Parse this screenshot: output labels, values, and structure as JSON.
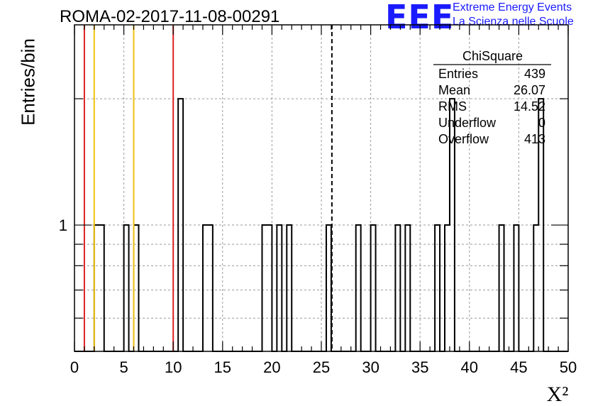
{
  "header": {
    "title": "ROMA-02-2017-11-08-00291",
    "logo_mark": "EEE",
    "logo_line1": "Extreme Energy Events",
    "logo_line2": "La Scienza nelle Scuole"
  },
  "colors": {
    "histogram": "#000000",
    "red_lines": "#dd2020",
    "yellow_lines": "#f0c010",
    "logo": "#1a1aff",
    "grid": "#9a9a9a"
  },
  "stats": {
    "title": "ChiSquare",
    "rows": [
      {
        "label": "Entries",
        "value": "439"
      },
      {
        "label": "Mean",
        "value": "26.07"
      },
      {
        "label": "RMS",
        "value": "14.52"
      },
      {
        "label": "Underflow",
        "value": "0"
      },
      {
        "label": "Overflow",
        "value": "413"
      }
    ]
  },
  "chart_data": {
    "type": "bar",
    "title": "ROMA-02-2017-11-08-00291",
    "xlabel": "X²",
    "ylabel": "Entries/bin",
    "xlim": [
      0,
      50
    ],
    "ylim": [
      0.5,
      3
    ],
    "log_y": true,
    "grid": true,
    "bin_width": 0.5,
    "x_ticks": [
      0,
      5,
      10,
      15,
      20,
      25,
      30,
      35,
      40,
      45,
      50
    ],
    "y_tick_labels": [
      {
        "value": 1,
        "label": "1"
      }
    ],
    "bins": [
      {
        "x": 2.0,
        "count": 1
      },
      {
        "x": 2.5,
        "count": 1
      },
      {
        "x": 5.0,
        "count": 1
      },
      {
        "x": 6.0,
        "count": 1
      },
      {
        "x": 10.5,
        "count": 2
      },
      {
        "x": 13.0,
        "count": 1
      },
      {
        "x": 13.5,
        "count": 1
      },
      {
        "x": 19.0,
        "count": 1
      },
      {
        "x": 19.5,
        "count": 1
      },
      {
        "x": 20.5,
        "count": 1
      },
      {
        "x": 21.5,
        "count": 1
      },
      {
        "x": 25.5,
        "count": 1
      },
      {
        "x": 28.5,
        "count": 1
      },
      {
        "x": 30.0,
        "count": 1
      },
      {
        "x": 32.5,
        "count": 1
      },
      {
        "x": 33.5,
        "count": 1
      },
      {
        "x": 36.5,
        "count": 1
      },
      {
        "x": 37.5,
        "count": 1
      },
      {
        "x": 38.0,
        "count": 2
      },
      {
        "x": 43.0,
        "count": 1
      },
      {
        "x": 44.5,
        "count": 1
      },
      {
        "x": 46.5,
        "count": 1
      },
      {
        "x": 47.0,
        "count": 2
      }
    ],
    "vertical_lines": [
      {
        "x": 1.0,
        "color": "red",
        "style": "solid"
      },
      {
        "x": 2.0,
        "color": "yellow",
        "style": "solid"
      },
      {
        "x": 6.0,
        "color": "yellow",
        "style": "solid"
      },
      {
        "x": 10.0,
        "color": "red",
        "style": "solid"
      },
      {
        "x": 26.07,
        "color": "black",
        "style": "dashed"
      }
    ]
  }
}
